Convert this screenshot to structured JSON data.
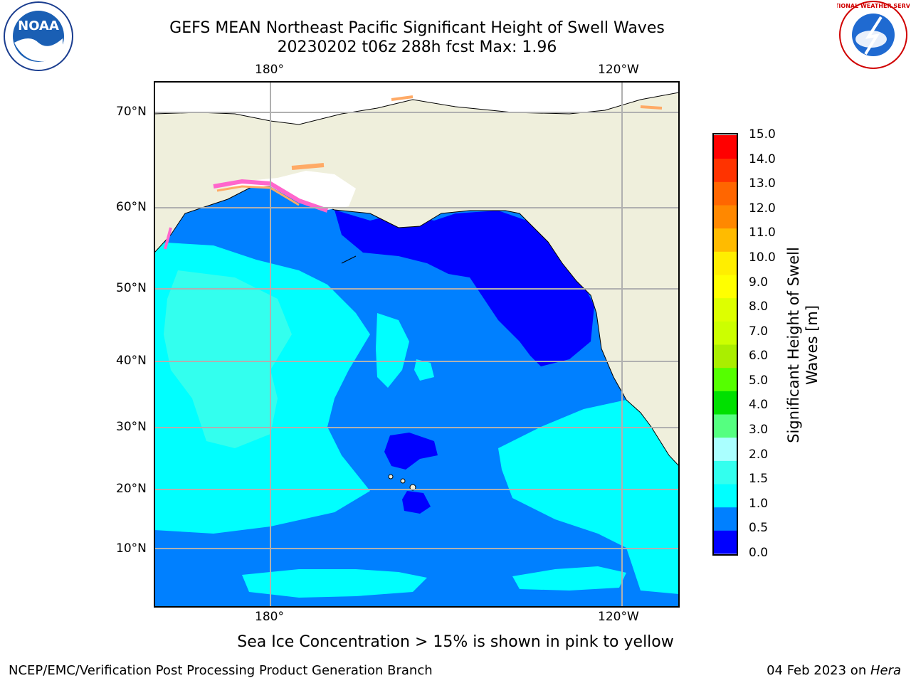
{
  "header": {
    "title_line1": "GEFS MEAN Northeast Pacific Significant Height of Swell Waves",
    "title_line2": "20230202 t06z 288h fcst   Max: 1.96",
    "left_logo_text": "NOAA",
    "right_logo_text": "NATIONAL WEATHER SERVICE"
  },
  "map": {
    "lon_labels": [
      "180°",
      "120°W"
    ],
    "lat_labels": [
      "70°N",
      "60°N",
      "50°N",
      "40°N",
      "30°N",
      "20°N",
      "10°N"
    ],
    "land_color": "#efefdc",
    "ice_colors": [
      "#ff66cc",
      "#ffaa66",
      "#ffee00"
    ],
    "grid_color": "#b0b0b0"
  },
  "colorbar": {
    "title_line1": "Significant Height of Swell",
    "title_line2": "Waves [m]",
    "ticks": [
      "15.0",
      "14.0",
      "13.0",
      "12.0",
      "11.0",
      "10.0",
      "9.0",
      "8.0",
      "7.0",
      "6.0",
      "5.0",
      "4.0",
      "3.0",
      "2.0",
      "1.5",
      "1.0",
      "0.5",
      "0.0"
    ],
    "colors": [
      "#0000ff",
      "#0080ff",
      "#00ffff",
      "#33ffee",
      "#aaffff",
      "#55ff80",
      "#00e000",
      "#55ff00",
      "#aaee00",
      "#ccff00",
      "#ddff00",
      "#ffff00",
      "#ffee00",
      "#ffbb00",
      "#ff8800",
      "#ff6600",
      "#ff3300",
      "#ff0000"
    ]
  },
  "notes": {
    "ice": "Sea Ice Concentration > 15% is shown in pink to yellow"
  },
  "footer": {
    "left": "NCEP/EMC/Verification Post Processing Product Generation Branch",
    "right_date": "04 Feb 2023 on ",
    "right_host": "Hera"
  }
}
